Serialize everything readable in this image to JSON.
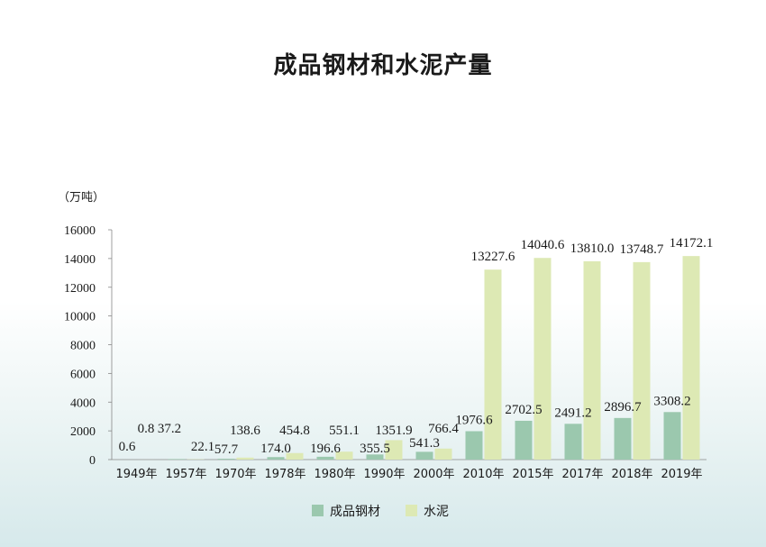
{
  "chart_data": {
    "type": "bar",
    "title": "成品钢材和水泥产量",
    "unit_label": "（万吨）",
    "categories": [
      "1949年",
      "1957年",
      "1970年",
      "1978年",
      "1980年",
      "1990年",
      "2000年",
      "2010年",
      "2015年",
      "2017年",
      "2018年",
      "2019年"
    ],
    "series": [
      {
        "name": "成品钢材",
        "color": "#9bc8ae",
        "values": [
          0.6,
          37.2,
          57.7,
          174.0,
          196.6,
          355.5,
          541.3,
          1976.6,
          2702.5,
          2491.2,
          2896.7,
          3308.2
        ],
        "labels": [
          "0.6",
          "37.2",
          "57.7",
          "174.0",
          "196.6",
          "355.5",
          "541.3",
          "1976.6",
          "2702.5",
          "2491.2",
          "2896.7",
          "3308.2"
        ]
      },
      {
        "name": "水泥",
        "color": "#dde9b4",
        "values": [
          0.8,
          22.1,
          138.6,
          454.8,
          551.1,
          1351.9,
          766.4,
          13227.6,
          14040.6,
          13810.0,
          13748.7,
          14172.1
        ],
        "labels": [
          "0.8",
          "22.1",
          "138.6",
          "454.8",
          "551.1",
          "1351.9",
          "766.4",
          "13227.6",
          "14040.6",
          "13810.0",
          "13748.7",
          "14172.1"
        ]
      }
    ],
    "yticks": [
      "0",
      "2000",
      "4000",
      "6000",
      "8000",
      "10000",
      "12000",
      "14000",
      "16000"
    ],
    "ylim": [
      0,
      16000
    ],
    "legend_position": "bottom",
    "grid": false
  }
}
